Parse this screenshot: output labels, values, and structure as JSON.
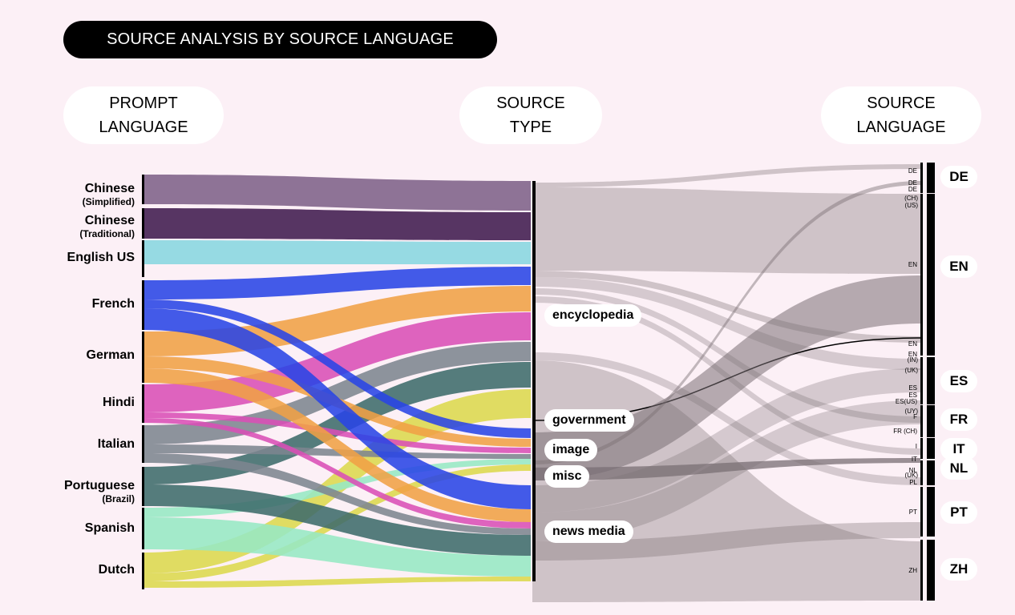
{
  "title": "SOURCE ANALYSIS BY SOURCE LANGUAGE",
  "columns": {
    "prompt": [
      "PROMPT",
      "LANGUAGE"
    ],
    "type": [
      "SOURCE",
      "TYPE"
    ],
    "source": [
      "SOURCE",
      "LANGUAGE"
    ]
  },
  "prompt_languages": [
    {
      "name": "Chinese",
      "sub": "(Simplified)",
      "color": "#7e6189"
    },
    {
      "name": "Chinese",
      "sub": "(Traditional)",
      "color": "#401a4e"
    },
    {
      "name": "English US",
      "sub": "",
      "color": "#88d6e0"
    },
    {
      "name": "French",
      "sub": "",
      "color": "#2944e6"
    },
    {
      "name": "German",
      "sub": "",
      "color": "#f0a046"
    },
    {
      "name": "Hindi",
      "sub": "",
      "color": "#d94fb6"
    },
    {
      "name": "Italian",
      "sub": "",
      "color": "#7d8590"
    },
    {
      "name": "Portuguese",
      "sub": "(Brazil)",
      "color": "#3e6b6b"
    },
    {
      "name": "Spanish",
      "sub": "",
      "color": "#96e8c4"
    },
    {
      "name": "Dutch",
      "sub": "",
      "color": "#dcd84d"
    }
  ],
  "source_types": [
    "encyclopedia",
    "government",
    "image",
    "misc",
    "news media"
  ],
  "source_languages": [
    "DE",
    "EN",
    "ES",
    "FR",
    "IT",
    "NL",
    "PT",
    "ZH"
  ],
  "sublabels": {
    "de1": "DE",
    "de2": "DE",
    "de3": "DE",
    "ch": "(CH)",
    "us": "(US)",
    "en1": "EN",
    "en2": "EN",
    "en3": "EN",
    "in": "(IN)",
    "uk": "(UK)",
    "es1": "ES",
    "es2": "ES",
    "es3": "ES",
    "es_us": "ES(US)",
    "uy": "(UY)",
    "f": "F",
    "fr_ch": "FR (CH)",
    "fr": "F",
    "i": "I",
    "it": "IT",
    "nl1": "NL",
    "uk2": "(UK)",
    "pl": "PL",
    "pt": "PT",
    "zh": "ZH"
  },
  "flows": [
    {
      "from": 0,
      "y0": 218,
      "y1": 255,
      "to": 226,
      "to1": 263
    },
    {
      "from": 1,
      "y0": 260,
      "y1": 298,
      "to": 265,
      "to1": 300
    },
    {
      "from": 2,
      "y0": 300,
      "y1": 330,
      "to": 302,
      "to1": 330
    },
    {
      "from": 3,
      "y0": 350,
      "y1": 374,
      "to": 333,
      "to1": 356
    },
    {
      "from": 4,
      "y0": 414,
      "y1": 445,
      "to": 357,
      "to1": 389
    },
    {
      "from": 5,
      "y0": 480,
      "y1": 515,
      "to": 390,
      "to1": 425
    },
    {
      "from": 6,
      "y0": 531,
      "y1": 555,
      "to": 427,
      "to1": 451
    },
    {
      "from": 7,
      "y0": 583,
      "y1": 605,
      "to": 452,
      "to1": 484
    },
    {
      "from": 9,
      "y0": 690,
      "y1": 716,
      "to": 486,
      "to1": 522
    },
    {
      "from": 3,
      "y0": 374,
      "y1": 385,
      "to": 535,
      "to1": 547
    },
    {
      "from": 4,
      "y0": 445,
      "y1": 460,
      "to": 548,
      "to1": 558
    },
    {
      "from": 5,
      "y0": 515,
      "y1": 522,
      "to": 559,
      "to1": 566
    },
    {
      "from": 6,
      "y0": 555,
      "y1": 566,
      "to": 567,
      "to1": 573
    },
    {
      "from": 8,
      "y0": 634,
      "y1": 646,
      "to": 573,
      "to1": 580
    },
    {
      "from": 9,
      "y0": 716,
      "y1": 726,
      "to": 580,
      "to1": 588
    },
    {
      "from": 3,
      "y0": 385,
      "y1": 412,
      "to": 606,
      "to1": 636
    },
    {
      "from": 4,
      "y0": 460,
      "y1": 478,
      "to": 636,
      "to1": 652
    },
    {
      "from": 5,
      "y0": 522,
      "y1": 528,
      "to": 652,
      "to1": 660
    },
    {
      "from": 6,
      "y0": 566,
      "y1": 578,
      "to": 660,
      "to1": 668
    },
    {
      "from": 7,
      "y0": 605,
      "y1": 632,
      "to": 668,
      "to1": 694
    },
    {
      "from": 8,
      "y0": 646,
      "y1": 686,
      "to": 694,
      "to1": 720
    },
    {
      "from": 9,
      "y0": 726,
      "y1": 734,
      "to": 720,
      "to1": 726
    }
  ],
  "gray_flows": [
    {
      "y0": 228,
      "y1": 234,
      "to": 205,
      "to1": 211,
      "o": 0.35
    },
    {
      "y0": 234,
      "y1": 338,
      "to": 242,
      "to1": 342,
      "o": 0.35
    },
    {
      "y0": 338,
      "y1": 346,
      "to": 420,
      "to1": 428,
      "o": 0.35
    },
    {
      "y0": 346,
      "y1": 358,
      "to": 448,
      "to1": 462,
      "o": 0.3
    },
    {
      "y0": 360,
      "y1": 368,
      "to": 520,
      "to1": 528,
      "o": 0.3
    },
    {
      "y0": 370,
      "y1": 378,
      "to": 560,
      "to1": 568,
      "o": 0.3
    },
    {
      "y0": 440,
      "y1": 450,
      "to": 596,
      "to1": 606,
      "o": 0.3
    },
    {
      "y0": 450,
      "y1": 752,
      "to": 676,
      "to1": 750,
      "o": 0.35
    },
    {
      "y0": 525,
      "y1": 529,
      "to": 422,
      "to1": 426,
      "o": 1.0,
      "dark": true
    },
    {
      "y0": 540,
      "y1": 600,
      "to": 344,
      "to1": 404,
      "o": 0.55
    },
    {
      "y0": 575,
      "y1": 580,
      "to": 226,
      "to1": 231,
      "o": 0.45
    },
    {
      "y0": 584,
      "y1": 600,
      "to": 572,
      "to1": 578,
      "o": 0.75
    },
    {
      "y0": 606,
      "y1": 640,
      "to": 460,
      "to1": 490,
      "o": 0.3
    },
    {
      "y0": 640,
      "y1": 676,
      "to": 500,
      "to1": 530,
      "o": 0.3
    },
    {
      "y0": 676,
      "y1": 700,
      "to": 652,
      "to1": 672,
      "o": 0.35
    }
  ]
}
